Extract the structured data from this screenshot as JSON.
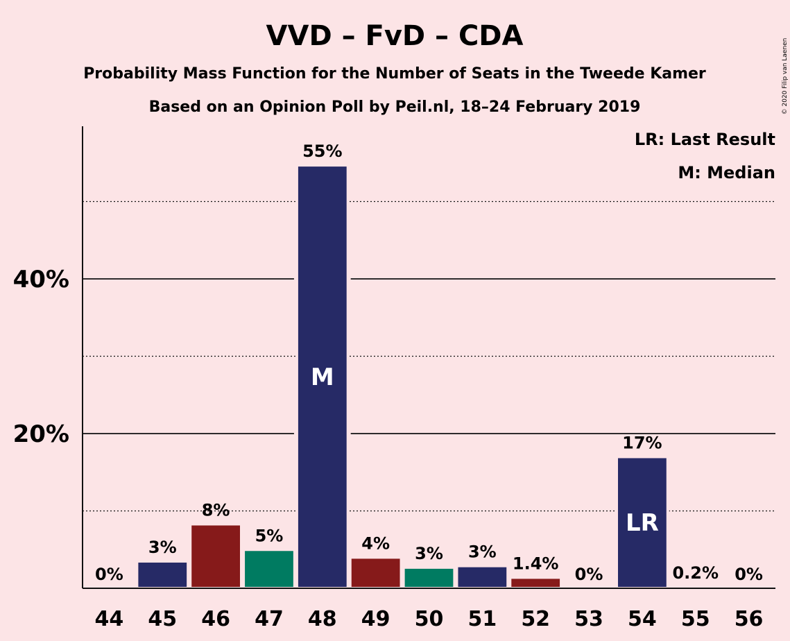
{
  "chart_data": {
    "type": "bar",
    "title": "VVD – FvD – CDA",
    "subtitle": "Probability Mass Function for the Number of Seats in the Tweede Kamer",
    "subtitle2": "Based on an Opinion Poll by Peil.nl, 18–24 February 2019",
    "credit": "© 2020 Filip van Laenen",
    "legend": [
      "LR: Last Result",
      "M: Median"
    ],
    "legend_position": "top-right",
    "ylim": [
      0,
      60
    ],
    "yticks": [
      {
        "value": 20,
        "label": "20%"
      },
      {
        "value": 40,
        "label": "40%"
      }
    ],
    "minor_gridlines": [
      10,
      30,
      50
    ],
    "categories": [
      "44",
      "45",
      "46",
      "47",
      "48",
      "49",
      "50",
      "51",
      "52",
      "53",
      "54",
      "55",
      "56"
    ],
    "values": [
      0,
      3.5,
      8.3,
      5.0,
      54.7,
      4.0,
      2.7,
      2.9,
      1.4,
      0,
      17.0,
      0.2,
      0
    ],
    "labels": [
      "0%",
      "3%",
      "8%",
      "5%",
      "55%",
      "4%",
      "3%",
      "3%",
      "1.4%",
      "0%",
      "17%",
      "0.2%",
      "0%"
    ],
    "bar_colors": [
      "#262a66",
      "#262a66",
      "#861a1a",
      "#007b61",
      "#262a66",
      "#861a1a",
      "#007b61",
      "#262a66",
      "#861a1a",
      "#262a66",
      "#262a66",
      "#861a1a",
      "#007b61"
    ],
    "markers": [
      {
        "category": "48",
        "text": "M"
      },
      {
        "category": "54",
        "text": "LR"
      }
    ]
  },
  "colors": {
    "background": "#fce4e6",
    "text": "#111111",
    "axis": "#111111"
  }
}
